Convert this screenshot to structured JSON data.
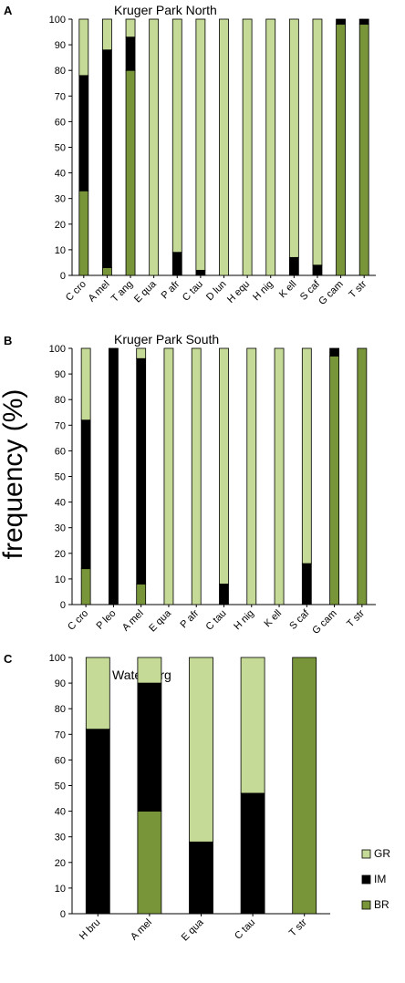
{
  "ylabel": "frequency (%)",
  "colors": {
    "GR": "#c5da96",
    "IM": "#000000",
    "BR": "#78953a"
  },
  "legend": [
    {
      "key": "GR",
      "label": "GR"
    },
    {
      "key": "IM",
      "label": "IM"
    },
    {
      "key": "BR",
      "label": "BR"
    }
  ],
  "chart_data": [
    {
      "type": "bar",
      "stacked": true,
      "panel": "A",
      "title": "Kruger Park North",
      "ylim": [
        0,
        100
      ],
      "yticks": [
        0,
        10,
        20,
        30,
        40,
        50,
        60,
        70,
        80,
        90,
        100
      ],
      "categories": [
        "C cro",
        "A mel",
        "T ang",
        "E qua",
        "P afr",
        "C tau",
        "D lun",
        "H equ",
        "H nig",
        "K ell",
        "S caf",
        "G cam",
        "T str"
      ],
      "series": [
        {
          "name": "BR",
          "values": [
            33,
            3,
            80,
            0,
            0,
            0,
            0,
            0,
            0,
            0,
            0,
            98,
            98
          ]
        },
        {
          "name": "IM",
          "values": [
            45,
            85,
            13,
            0,
            9,
            2,
            0,
            0,
            0,
            7,
            4,
            2,
            2
          ]
        },
        {
          "name": "GR",
          "values": [
            22,
            12,
            7,
            100,
            91,
            98,
            100,
            100,
            100,
            93,
            96,
            0,
            0
          ]
        }
      ]
    },
    {
      "type": "bar",
      "stacked": true,
      "panel": "B",
      "title": "Kruger Park South",
      "ylim": [
        0,
        100
      ],
      "yticks": [
        0,
        10,
        20,
        30,
        40,
        50,
        60,
        70,
        80,
        90,
        100
      ],
      "categories": [
        "C cro",
        "P leo",
        "A mel",
        "E qua",
        "P afr",
        "C tau",
        "H nig",
        "K ell",
        "S caf",
        "G cam",
        "T str"
      ],
      "series": [
        {
          "name": "BR",
          "values": [
            14,
            0,
            8,
            0,
            0,
            0,
            0,
            0,
            0,
            97,
            100
          ]
        },
        {
          "name": "IM",
          "values": [
            58,
            100,
            88,
            0,
            0,
            8,
            0,
            0,
            16,
            3,
            0
          ]
        },
        {
          "name": "GR",
          "values": [
            28,
            0,
            4,
            100,
            100,
            92,
            100,
            100,
            84,
            0,
            0
          ]
        }
      ]
    },
    {
      "type": "bar",
      "stacked": true,
      "panel": "C",
      "title": "Waterberg",
      "ylim": [
        0,
        100
      ],
      "yticks": [
        0,
        10,
        20,
        30,
        40,
        50,
        60,
        70,
        80,
        90,
        100
      ],
      "categories": [
        "H bru",
        "A mel",
        "E qua",
        "C tau",
        "T str"
      ],
      "series": [
        {
          "name": "BR",
          "values": [
            0,
            40,
            0,
            0,
            100
          ]
        },
        {
          "name": "IM",
          "values": [
            72,
            50,
            28,
            47,
            0
          ]
        },
        {
          "name": "GR",
          "values": [
            28,
            10,
            72,
            53,
            0
          ]
        }
      ]
    }
  ]
}
